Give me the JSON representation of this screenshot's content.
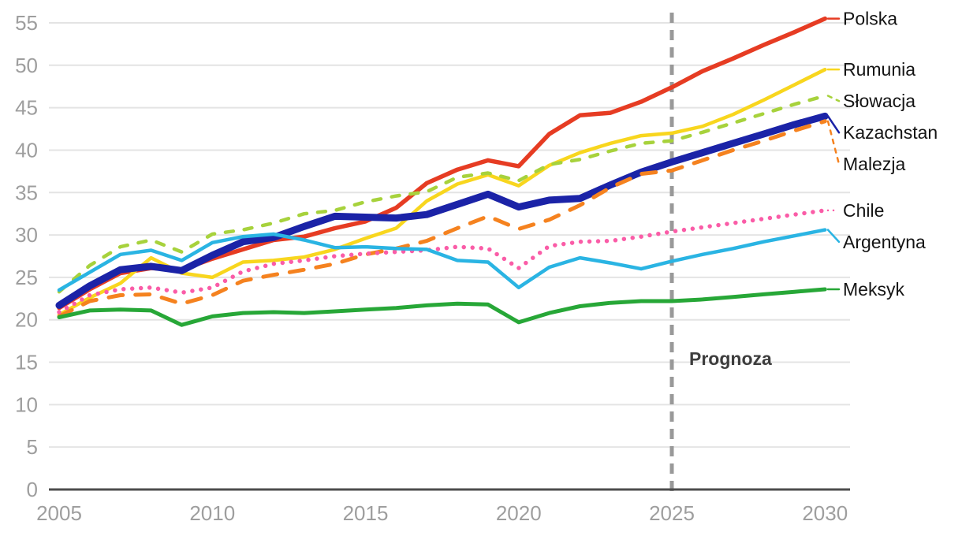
{
  "chart_data": {
    "type": "line",
    "title": "",
    "xlabel": "",
    "ylabel": "",
    "grid": "horizontal",
    "legend_position": "right-edge-labels",
    "x_start": 2005,
    "x_end": 2030,
    "x_ticks": [
      2005,
      2010,
      2015,
      2020,
      2025,
      2030
    ],
    "y_ticks": [
      0,
      5,
      10,
      15,
      20,
      25,
      30,
      35,
      40,
      45,
      50,
      55
    ],
    "ylim": [
      0,
      56.5
    ],
    "forecast_marker": {
      "label": "Prognoza",
      "year": 2025,
      "line_color": "#999999",
      "line_style": "dashed"
    },
    "axis_color": "#4d4d4d",
    "gridline_color": "#e4e4e4",
    "tick_label_color": "#9e9e9e",
    "series": [
      {
        "name": "Polska",
        "color": "#e63c23",
        "style": "solid",
        "width": 5.5,
        "values": [
          21.4,
          23.6,
          25.5,
          26.1,
          25.9,
          27.2,
          28.3,
          29.4,
          29.8,
          30.8,
          31.6,
          33.2,
          36.1,
          37.7,
          38.8,
          38.1,
          41.9,
          44.1,
          44.4,
          45.7,
          47.4,
          49.3,
          50.8,
          52.4,
          53.9,
          55.5
        ]
      },
      {
        "name": "Rumunia",
        "color": "#f8d61e",
        "style": "solid",
        "width": 4.5,
        "values": [
          20.6,
          22.6,
          24.3,
          27.3,
          25.5,
          25.0,
          26.8,
          27.0,
          27.4,
          28.3,
          29.6,
          30.8,
          34.0,
          36.0,
          37.1,
          35.8,
          38.2,
          39.7,
          40.8,
          41.7,
          42.0,
          42.8,
          44.2,
          45.9,
          47.7,
          49.5
        ]
      },
      {
        "name": "Słowacja",
        "color": "#a7d23c",
        "style": "dashed",
        "width": 4.5,
        "values": [
          23.3,
          26.4,
          28.6,
          29.4,
          28.0,
          30.1,
          30.6,
          31.4,
          32.5,
          32.9,
          33.9,
          34.6,
          35.1,
          36.8,
          37.3,
          36.4,
          38.3,
          38.9,
          39.9,
          40.8,
          41.1,
          42.1,
          43.2,
          44.3,
          45.4,
          46.4
        ]
      },
      {
        "name": "Kazachstan",
        "color": "#1b23a7",
        "style": "solid",
        "width": 9,
        "values": [
          21.7,
          24.0,
          25.9,
          26.3,
          25.8,
          27.6,
          29.2,
          29.7,
          31.0,
          32.2,
          32.1,
          32.0,
          32.4,
          33.6,
          34.8,
          33.3,
          34.1,
          34.3,
          35.9,
          37.4,
          38.6,
          39.7,
          40.8,
          41.9,
          43.0,
          44.0
        ]
      },
      {
        "name": "Malezja",
        "color": "#f5821f",
        "style": "long-dashed",
        "width": 5,
        "values": [
          20.4,
          22.2,
          22.9,
          23.0,
          21.9,
          22.9,
          24.6,
          25.3,
          25.9,
          26.6,
          27.7,
          28.4,
          29.3,
          30.8,
          32.2,
          30.7,
          31.8,
          33.5,
          35.6,
          37.2,
          37.6,
          38.8,
          40.0,
          41.1,
          42.3,
          43.4
        ]
      },
      {
        "name": "Chile",
        "color": "#fa5ca7",
        "style": "dotted",
        "width": 5.5,
        "values": [
          20.9,
          22.9,
          23.6,
          23.8,
          23.2,
          23.8,
          25.7,
          26.6,
          27.0,
          27.5,
          27.8,
          28.0,
          28.2,
          28.6,
          28.4,
          26.1,
          28.7,
          29.2,
          29.3,
          29.8,
          30.4,
          30.9,
          31.4,
          31.9,
          32.4,
          32.9
        ]
      },
      {
        "name": "Argentyna",
        "color": "#2ab4e3",
        "style": "solid",
        "width": 4.5,
        "values": [
          23.5,
          25.6,
          27.7,
          28.2,
          27.0,
          29.1,
          29.8,
          30.1,
          29.4,
          28.5,
          28.6,
          28.4,
          28.3,
          27.0,
          26.8,
          23.8,
          26.2,
          27.3,
          26.7,
          26.0,
          26.9,
          27.7,
          28.4,
          29.2,
          29.9,
          30.6
        ]
      },
      {
        "name": "Meksyk",
        "color": "#27a737",
        "style": "solid",
        "width": 5,
        "values": [
          20.3,
          21.1,
          21.2,
          21.1,
          19.4,
          20.4,
          20.8,
          20.9,
          20.8,
          21.0,
          21.2,
          21.4,
          21.7,
          21.9,
          21.8,
          19.7,
          20.8,
          21.6,
          22.0,
          22.2,
          22.2,
          22.4,
          22.7,
          23.0,
          23.3,
          23.6
        ]
      }
    ]
  }
}
